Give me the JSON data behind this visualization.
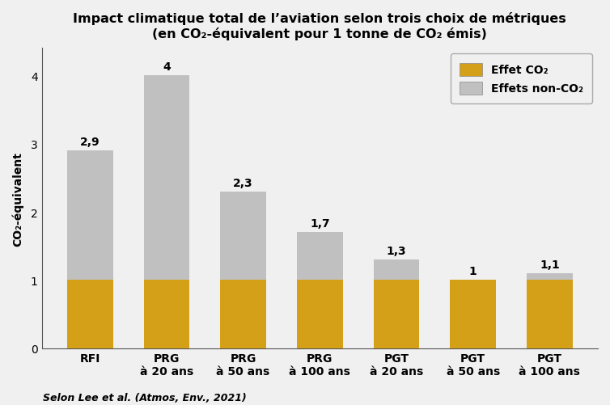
{
  "title_line1": "Impact climatique total de l’aviation selon trois choix de métriques",
  "title_line2": "(en CO₂-équivalent pour 1 tonne de CO₂ émis)",
  "categories": [
    "RFI",
    "PRG\nà 20 ans",
    "PRG\nà 50 ans",
    "PRG\nà 100 ans",
    "PGT\nà 20 ans",
    "PGT\nà 50 ans",
    "PGT\nà 100 ans"
  ],
  "co2_values": [
    1.0,
    1.0,
    1.0,
    1.0,
    1.0,
    1.0,
    1.0
  ],
  "non_co2_values": [
    1.9,
    3.0,
    1.3,
    0.7,
    0.3,
    0.0,
    0.1
  ],
  "totals": [
    2.9,
    4.0,
    2.3,
    1.7,
    1.3,
    1.0,
    1.1
  ],
  "total_labels": [
    "2,9",
    "4",
    "2,3",
    "1,7",
    "1,3",
    "1",
    "1,1"
  ],
  "co2_color": "#D4A017",
  "non_co2_color": "#C0C0C0",
  "ylabel": "CO₂-équivalent",
  "ylim": [
    0,
    4.4
  ],
  "yticks": [
    0,
    1,
    2,
    3,
    4
  ],
  "legend_co2": "Effet CO₂",
  "legend_non_co2": "Effets non-CO₂",
  "footnote": "Selon Lee et al. (Atmos, Env., 2021)",
  "background_color": "#F0F0F0",
  "title_fontsize": 11.5,
  "label_fontsize": 10,
  "tick_fontsize": 10,
  "annotation_fontsize": 10,
  "footnote_fontsize": 9,
  "bar_width": 0.6
}
